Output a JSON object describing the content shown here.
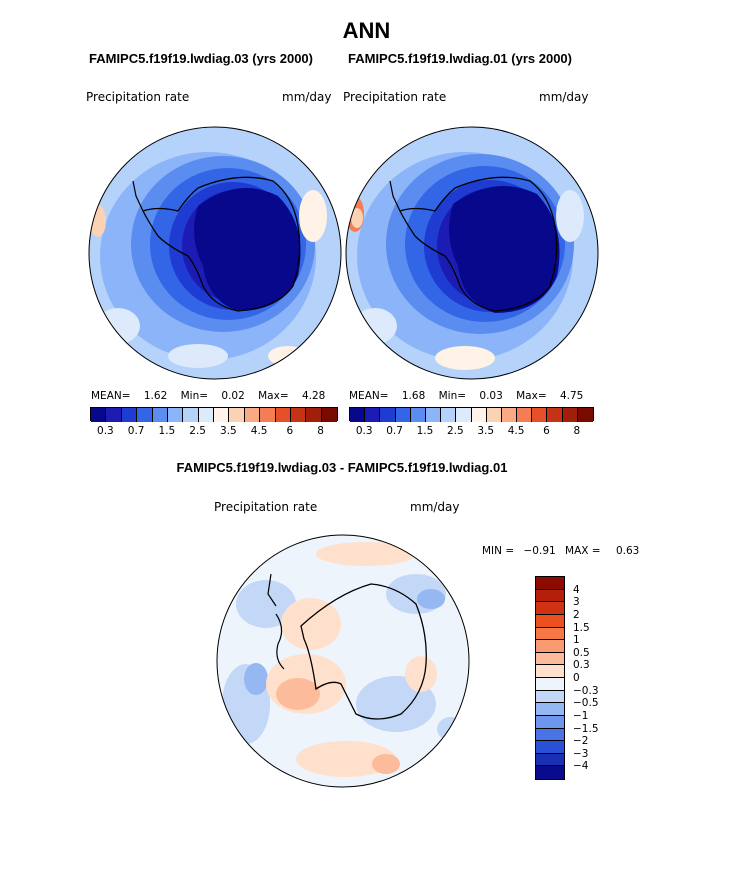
{
  "header": {
    "title": "ANN"
  },
  "panel_left": {
    "case_title": "FAMIPC5.f19f19.lwdiag.03 (yrs 2000)",
    "field": "Precipitation rate",
    "units": "mm/day",
    "stats": {
      "mean_label": "MEAN=",
      "mean": "1.62",
      "min_label": "Min=",
      "min": "0.02",
      "max_label": "Max=",
      "max": "4.28"
    }
  },
  "panel_right": {
    "case_title": "FAMIPC5.f19f19.lwdiag.01 (yrs 2000)",
    "field": "Precipitation rate",
    "units": "mm/day",
    "stats": {
      "mean_label": "MEAN=",
      "mean": "1.68",
      "min_label": "Min=",
      "min": "0.03",
      "max_label": "Max=",
      "max": "4.75"
    }
  },
  "colorbar_top": {
    "colors": [
      "#08088c",
      "#1c1cb4",
      "#1e3cd2",
      "#3366e6",
      "#5b8cf0",
      "#8cb4f8",
      "#b4d2fa",
      "#dceafc",
      "#fff2e6",
      "#fcd2b4",
      "#faaa82",
      "#f57d55",
      "#e65028",
      "#c83214",
      "#a01e0a",
      "#780a00"
    ],
    "labels": [
      "0.3",
      "0.7",
      "1.5",
      "2.5",
      "3.5",
      "4.5",
      "6",
      "8"
    ]
  },
  "difference": {
    "title": "FAMIPC5.f19f19.lwdiag.03 - FAMIPC5.f19f19.lwdiag.01",
    "field": "Precipitation rate",
    "units": "mm/day",
    "min_label": "MIN =",
    "min": "−0.91",
    "max_label": "MAX =",
    "max": "0.63",
    "colorbar": {
      "colors": [
        "#8c0a00",
        "#b41e0a",
        "#d23214",
        "#eb501e",
        "#f57846",
        "#fa9a70",
        "#fcbc9c",
        "#fee0cc",
        "#eef4fc",
        "#c2d8f6",
        "#96b8f2",
        "#6e96ec",
        "#4a74e6",
        "#2a50d8",
        "#1a30b4",
        "#0a0a8c"
      ],
      "labels": [
        "4",
        "3",
        "2",
        "1.5",
        "1",
        "0.5",
        "0.3",
        "0",
        "−0.3",
        "−0.5",
        "−1",
        "−1.5",
        "−2",
        "−3",
        "−4"
      ]
    }
  }
}
